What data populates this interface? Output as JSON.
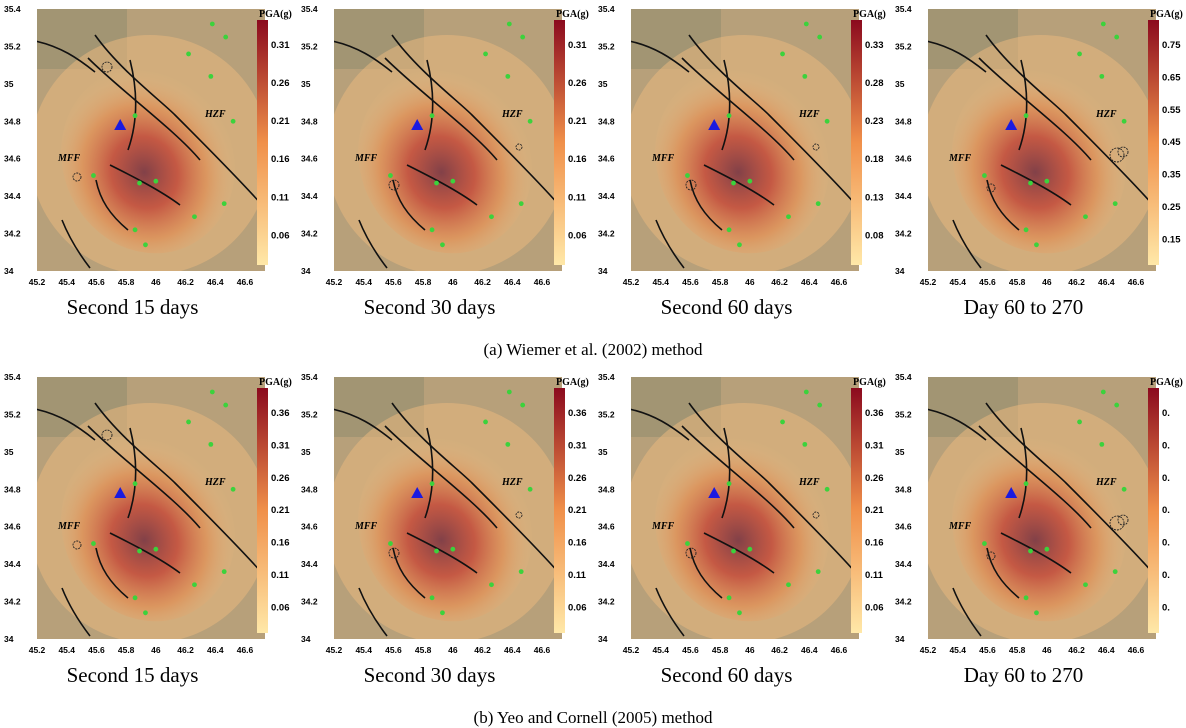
{
  "x_ticks": [
    "45.2",
    "45.4",
    "45.6",
    "45.8",
    "46",
    "46.2",
    "46.4",
    "46.6"
  ],
  "y_ticks": [
    "35.4",
    "35.2",
    "35",
    "34.8",
    "34.6",
    "34.4",
    "34.2",
    "34"
  ],
  "colorbar_title": "PGA(g)",
  "fault_labels": {
    "hzf": "HZF",
    "mff": "MFF"
  },
  "colors": {
    "low": "#ffe8a8",
    "mid": "#f0904a",
    "high": "#8b0a1e",
    "station": "#3cd23c",
    "epicenter": "#1a1ae0",
    "fault": "#111111"
  },
  "rows": [
    {
      "title": "(a) Wiemer et al. (2002) method",
      "panels": [
        {
          "caption": "Second 15 days",
          "colorbar": [
            "0.31",
            "0.26",
            "0.21",
            "0.16",
            "0.11",
            "0.06"
          ]
        },
        {
          "caption": "Second 30 days",
          "colorbar": [
            "0.31",
            "0.26",
            "0.21",
            "0.16",
            "0.11",
            "0.06"
          ]
        },
        {
          "caption": "Second 60 days",
          "colorbar": [
            "0.33",
            "0.28",
            "0.23",
            "0.18",
            "0.13",
            "0.08"
          ]
        },
        {
          "caption": "Day 60 to 270",
          "colorbar": [
            "0.75",
            "0.65",
            "0.55",
            "0.45",
            "0.35",
            "0.25",
            "0.15"
          ]
        }
      ]
    },
    {
      "title": "(b) Yeo and Cornell (2005) method",
      "panels": [
        {
          "caption": "Second 15 days",
          "colorbar": [
            "0.36",
            "0.31",
            "0.26",
            "0.21",
            "0.16",
            "0.11",
            "0.06"
          ]
        },
        {
          "caption": "Second 30 days",
          "colorbar": [
            "0.36",
            "0.31",
            "0.26",
            "0.21",
            "0.16",
            "0.11",
            "0.06"
          ]
        },
        {
          "caption": "Second 60 days",
          "colorbar": [
            "0.36",
            "0.31",
            "0.26",
            "0.21",
            "0.16",
            "0.11",
            "0.06"
          ]
        },
        {
          "caption": "Day 60 to 270",
          "colorbar": [
            "0.",
            "0.",
            "0.",
            "0.",
            "0.",
            "0.",
            "0."
          ]
        }
      ]
    }
  ]
}
